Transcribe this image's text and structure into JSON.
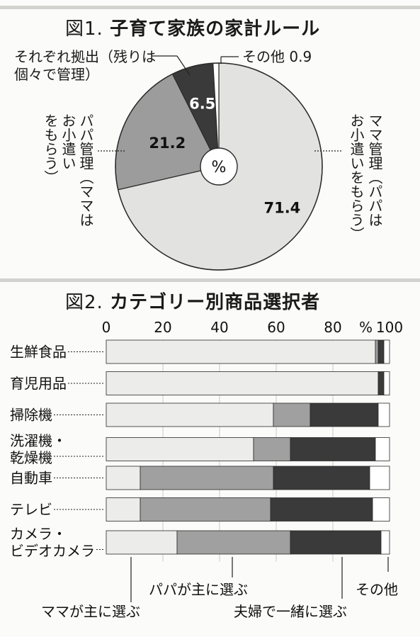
{
  "chart_data": [
    {
      "type": "pie",
      "title_prefix": "図1.",
      "title": "子育て家族の家計ルール",
      "unit": "%",
      "slices": [
        {
          "label": "ママ管理（パパはお小遣いをもらう）",
          "value": 71.4,
          "color": "#e2e2e0"
        },
        {
          "label": "パパ管理（ママはお小遣いをもらう）",
          "value": 21.2,
          "color": "#9c9c9c"
        },
        {
          "label": "それぞれ拠出（残りは個々で管理）",
          "value": 6.5,
          "color": "#3a3a3a"
        },
        {
          "label": "その他",
          "value": 0.9,
          "color": "#ffffff"
        }
      ],
      "annotations": {
        "top_left": [
          "それぞれ拠出（残りは",
          "個々で管理）"
        ],
        "top_right": "その他 0.9",
        "left_columns": [
          "パパ管理（ママは",
          "お小遣い",
          "をもらう）"
        ],
        "right_columns": [
          "ママ管理（パパは",
          "お小遣いをもらう）"
        ]
      }
    },
    {
      "type": "bar",
      "stacked": true,
      "orientation": "horizontal",
      "title_prefix": "図2.",
      "title": "カテゴリー別商品選択者",
      "unit": "%",
      "xlim": [
        0,
        100
      ],
      "ticks": [
        "0",
        "20",
        "40",
        "60",
        "80",
        "100"
      ],
      "categories": [
        "生鮮食品",
        "育児用品",
        "掃除機",
        "洗濯機・乾燥機",
        "自動車",
        "テレビ",
        "カメラ・ビデオカメラ"
      ],
      "category_lines": [
        [
          "生鮮食品"
        ],
        [
          "育児用品"
        ],
        [
          "掃除機"
        ],
        [
          "洗濯機・",
          "乾燥機"
        ],
        [
          "自動車"
        ],
        [
          "テレビ"
        ],
        [
          "カメラ・",
          "ビデオカメラ"
        ]
      ],
      "series": [
        {
          "name": "ママが主に選ぶ",
          "color": "#ececea",
          "values": [
            95,
            96,
            59,
            52,
            12,
            12,
            25
          ]
        },
        {
          "name": "パパが主に選ぶ",
          "color": "#a0a0a0",
          "values": [
            1,
            0,
            13,
            13,
            47,
            46,
            40
          ]
        },
        {
          "name": "夫婦で一緒に選ぶ",
          "color": "#3a3a3a",
          "values": [
            2,
            2,
            24,
            30,
            34,
            36,
            32
          ]
        },
        {
          "name": "その他",
          "color": "#ffffff",
          "values": [
            2,
            2,
            4,
            5,
            7,
            6,
            3
          ]
        }
      ]
    }
  ]
}
